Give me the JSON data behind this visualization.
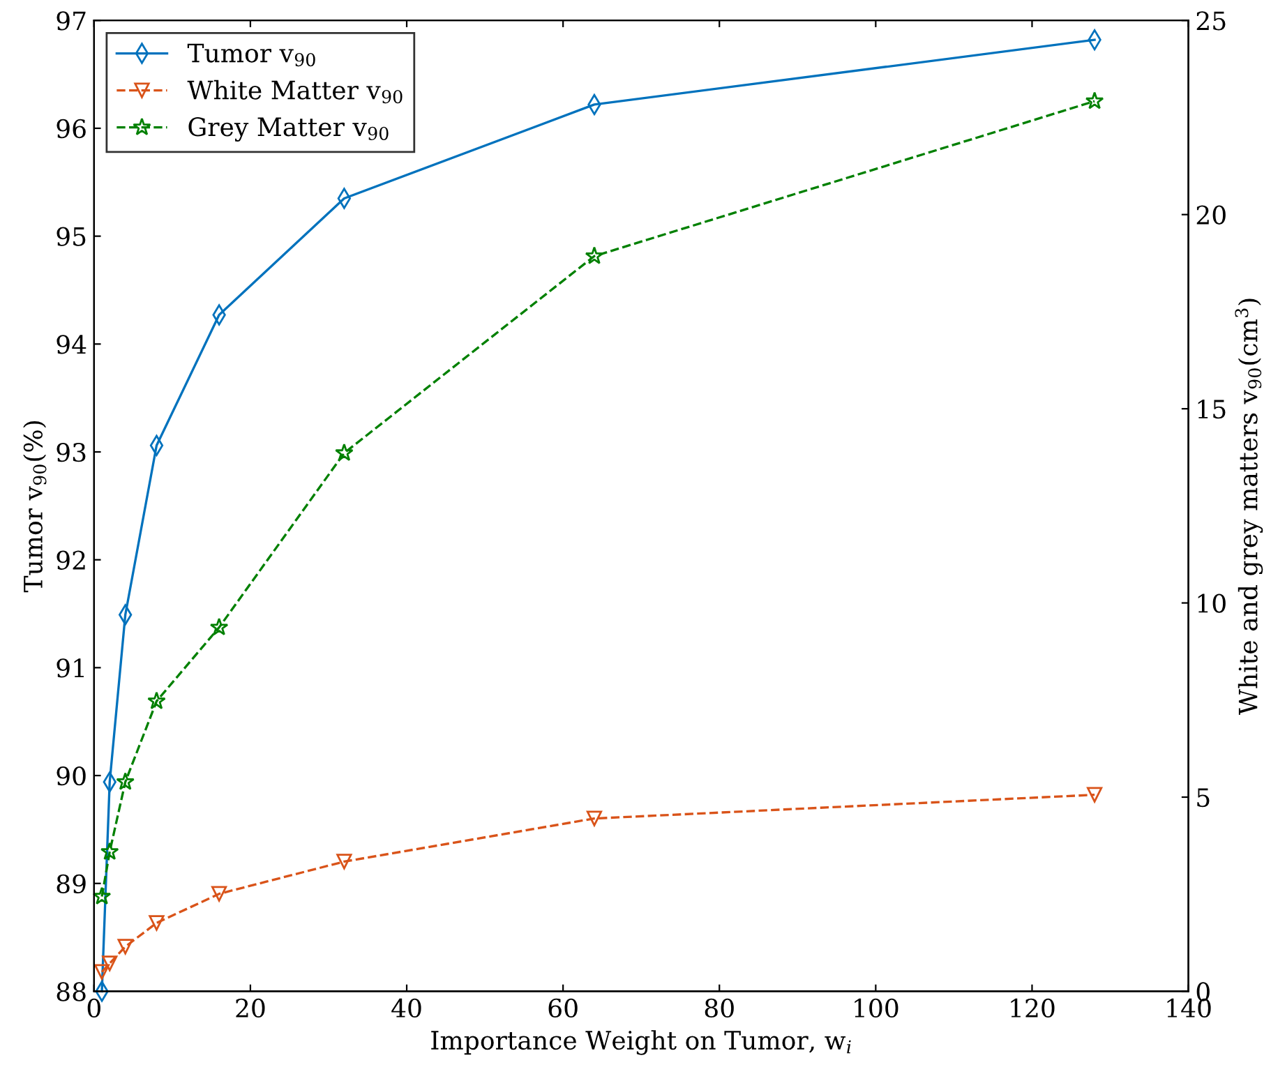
{
  "chart_data": {
    "type": "line",
    "xlabel": "Importance Weight on Tumor, w$_{i}$",
    "ylabel": "Tumor v$_{90}$(%)",
    "y2label": "White and grey matters v$_{90}$(cm$^{3}$)",
    "x": [
      1,
      2,
      4,
      8,
      16,
      32,
      64,
      128
    ],
    "series": [
      {
        "name": "Tumor v$_{90}$",
        "color": "#0072bd",
        "marker": "diamond",
        "line_style": "solid",
        "values": [
          88.0,
          89.94,
          91.49,
          93.06,
          94.27,
          95.35,
          96.22,
          96.82
        ]
      },
      {
        "name": "White Matter v$_{90}$",
        "color": "#d95319",
        "marker": "triangle",
        "line_style": "dashed",
        "axis": "y2",
        "values": [
          0.5,
          0.72,
          1.15,
          1.76,
          2.51,
          3.34,
          4.45,
          5.06
        ]
      },
      {
        "name": "Grey Matter v$_{90}$",
        "color": "#008000",
        "marker": "star",
        "line_style": "dashed",
        "axis": "y2",
        "values": [
          2.44,
          3.59,
          5.39,
          7.47,
          9.37,
          13.86,
          18.93,
          22.92
        ]
      }
    ],
    "xlim": [
      0,
      140
    ],
    "xticks": [
      0,
      20,
      40,
      60,
      80,
      100,
      120,
      140
    ],
    "ylim": [
      88,
      97
    ],
    "yticks": [
      88,
      89,
      90,
      91,
      92,
      93,
      94,
      95,
      96,
      97
    ],
    "y2lim": [
      0,
      25
    ],
    "y2ticks": [
      0,
      5,
      10,
      15,
      20,
      25
    ],
    "grid": false,
    "legend": "top left"
  }
}
